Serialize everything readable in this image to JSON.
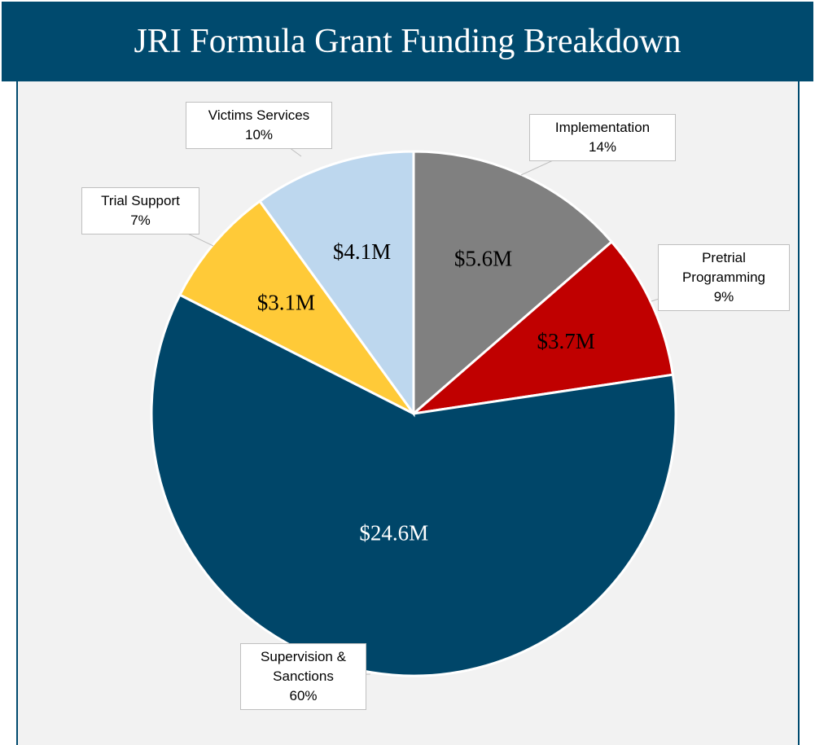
{
  "chart_data": {
    "type": "pie",
    "title": "JRI Formula Grant Funding Breakdown",
    "categories": [
      "Implementation",
      "Pretrial Programming",
      "Supervision & Sanctions",
      "Trial Support",
      "Victims Services"
    ],
    "values": [
      5.6,
      3.7,
      24.6,
      3.1,
      4.1
    ],
    "value_labels": [
      "$5.6M",
      "$3.7M",
      "$24.6M",
      "$3.1M",
      "$4.1M"
    ],
    "percentages": [
      14,
      9,
      60,
      7,
      10
    ],
    "percentage_labels": [
      "14%",
      "9%",
      "60%",
      "7%",
      "10%"
    ],
    "colors": [
      "#808080",
      "#c00000",
      "#004669",
      "#ffca38",
      "#bdd7ee"
    ],
    "value_label_colors": [
      "#000000",
      "#000000",
      "#ffffff",
      "#000000",
      "#000000"
    ]
  }
}
